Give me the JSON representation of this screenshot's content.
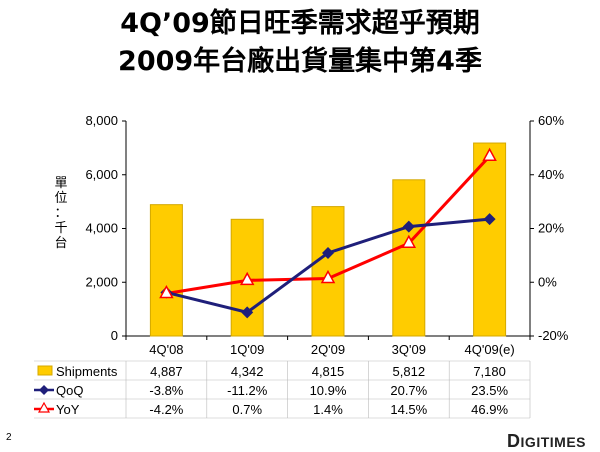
{
  "title": {
    "line1": "4Q’09節日旺季需求超乎預期",
    "line2": "2009年台廠出貨量集中第4季"
  },
  "y_axis_label": [
    "單",
    "位",
    "：",
    "千",
    "台"
  ],
  "page_number": "2",
  "brand": {
    "first": "D",
    "rest": "IGITIMES"
  },
  "colors": {
    "bar": "#FFCC00",
    "bar_edge": "#D4A800",
    "qoq": "#1F1F7A",
    "yoy": "#FF0000"
  },
  "chart_data": {
    "type": "bar",
    "categories": [
      "4Q'08",
      "1Q'09",
      "2Q'09",
      "3Q'09",
      "4Q'09(e)"
    ],
    "ylim": [
      0,
      8000
    ],
    "y_ticks": [
      "0",
      "2,000",
      "4,000",
      "6,000",
      "8,000"
    ],
    "y2lim": [
      -20,
      60
    ],
    "y2_ticks": [
      "-20%",
      "0%",
      "20%",
      "40%",
      "60%"
    ],
    "series": [
      {
        "name": "Shipments",
        "type": "bar",
        "axis": "left",
        "values": [
          4887,
          4342,
          4815,
          5812,
          7180
        ],
        "labels": [
          "4,887",
          "4,342",
          "4,815",
          "5,812",
          "7,180"
        ]
      },
      {
        "name": "QoQ",
        "type": "line",
        "axis": "right",
        "marker": "diamond",
        "values": [
          -3.8,
          -11.2,
          10.9,
          20.7,
          23.5
        ],
        "labels": [
          "-3.8%",
          "-11.2%",
          "10.9%",
          "20.7%",
          "23.5%"
        ]
      },
      {
        "name": "YoY",
        "type": "line",
        "axis": "right",
        "marker": "triangle",
        "values": [
          -4.2,
          0.7,
          1.4,
          14.5,
          46.9
        ],
        "labels": [
          "-4.2%",
          "0.7%",
          "1.4%",
          "14.5%",
          "46.9%"
        ]
      }
    ]
  }
}
